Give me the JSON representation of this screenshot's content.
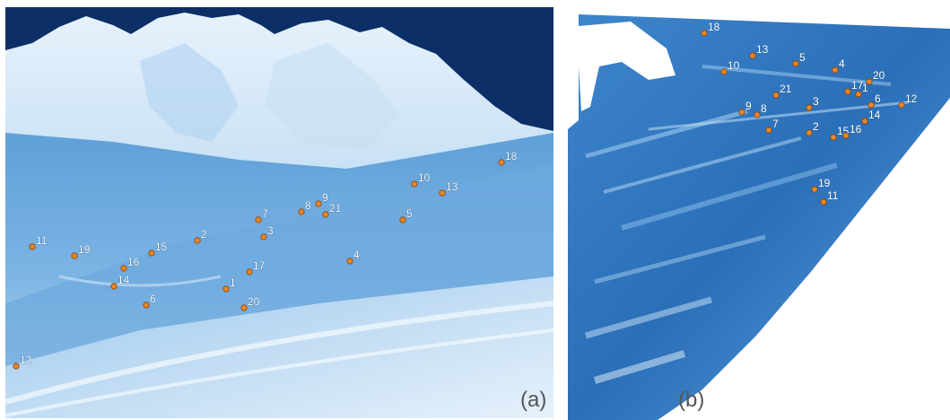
{
  "panels": {
    "a": {
      "caption": "(a)",
      "points": [
        {
          "label": "1"
        },
        {
          "label": "2"
        },
        {
          "label": "3"
        },
        {
          "label": "4"
        },
        {
          "label": "5"
        },
        {
          "label": "6"
        },
        {
          "label": "7"
        },
        {
          "label": "8"
        },
        {
          "label": "9"
        },
        {
          "label": "10"
        },
        {
          "label": "11"
        },
        {
          "label": "12"
        },
        {
          "label": "13"
        },
        {
          "label": "14"
        },
        {
          "label": "15"
        },
        {
          "label": "16"
        },
        {
          "label": "17"
        },
        {
          "label": "18"
        },
        {
          "label": "19"
        },
        {
          "label": "20"
        },
        {
          "label": "21"
        }
      ]
    },
    "b": {
      "caption": "(b)",
      "points": [
        {
          "label": "1"
        },
        {
          "label": "2"
        },
        {
          "label": "3"
        },
        {
          "label": "4"
        },
        {
          "label": "5"
        },
        {
          "label": "6"
        },
        {
          "label": "7"
        },
        {
          "label": "8"
        },
        {
          "label": "9"
        },
        {
          "label": "10"
        },
        {
          "label": "11"
        },
        {
          "label": "12"
        },
        {
          "label": "13"
        },
        {
          "label": "14"
        },
        {
          "label": "15"
        },
        {
          "label": "16"
        },
        {
          "label": "17"
        },
        {
          "label": "18"
        },
        {
          "label": "19"
        },
        {
          "label": "20"
        },
        {
          "label": "21"
        }
      ]
    }
  },
  "colors": {
    "sky": "#0b2f66",
    "snow_light": "#dfeefa",
    "snow_mid": "#7fb6e2",
    "snow_deep": "#2f78c2",
    "marker_fill": "#e8862a",
    "marker_stroke": "#8a3f00"
  }
}
